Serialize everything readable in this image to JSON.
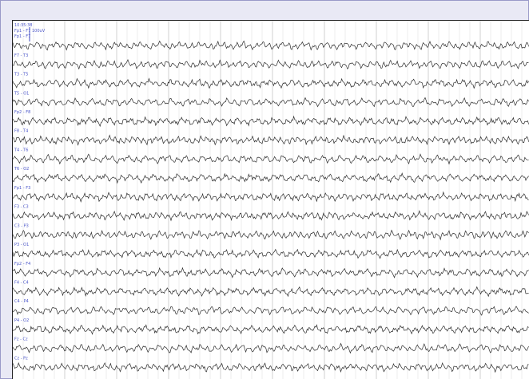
{
  "recording": {
    "time": "10:35:38",
    "cal_channel": "Fp1 - F7",
    "cal_value": "100uV"
  },
  "channels": [
    "Fp1 - F7",
    "F7 - T3",
    "T3 - T5",
    "T5 - O1",
    "Fp2 - F8",
    "F8 - T4",
    "T4 - T6",
    "T6 - O2",
    "Fp1 - F3",
    "F3 - C3",
    "C3 - P3",
    "P3 - O1",
    "Fp2 - F4",
    "F4 - C4",
    "C4 - P4",
    "P4 - O2",
    "Fz - Cz",
    "Cz - Pz"
  ],
  "colors": {
    "trace": "#2b2b2b",
    "label": "#4a55c8",
    "grid_minor": "#ececec",
    "grid_major": "#d0d0d0",
    "marker": "#3c47c2"
  }
}
